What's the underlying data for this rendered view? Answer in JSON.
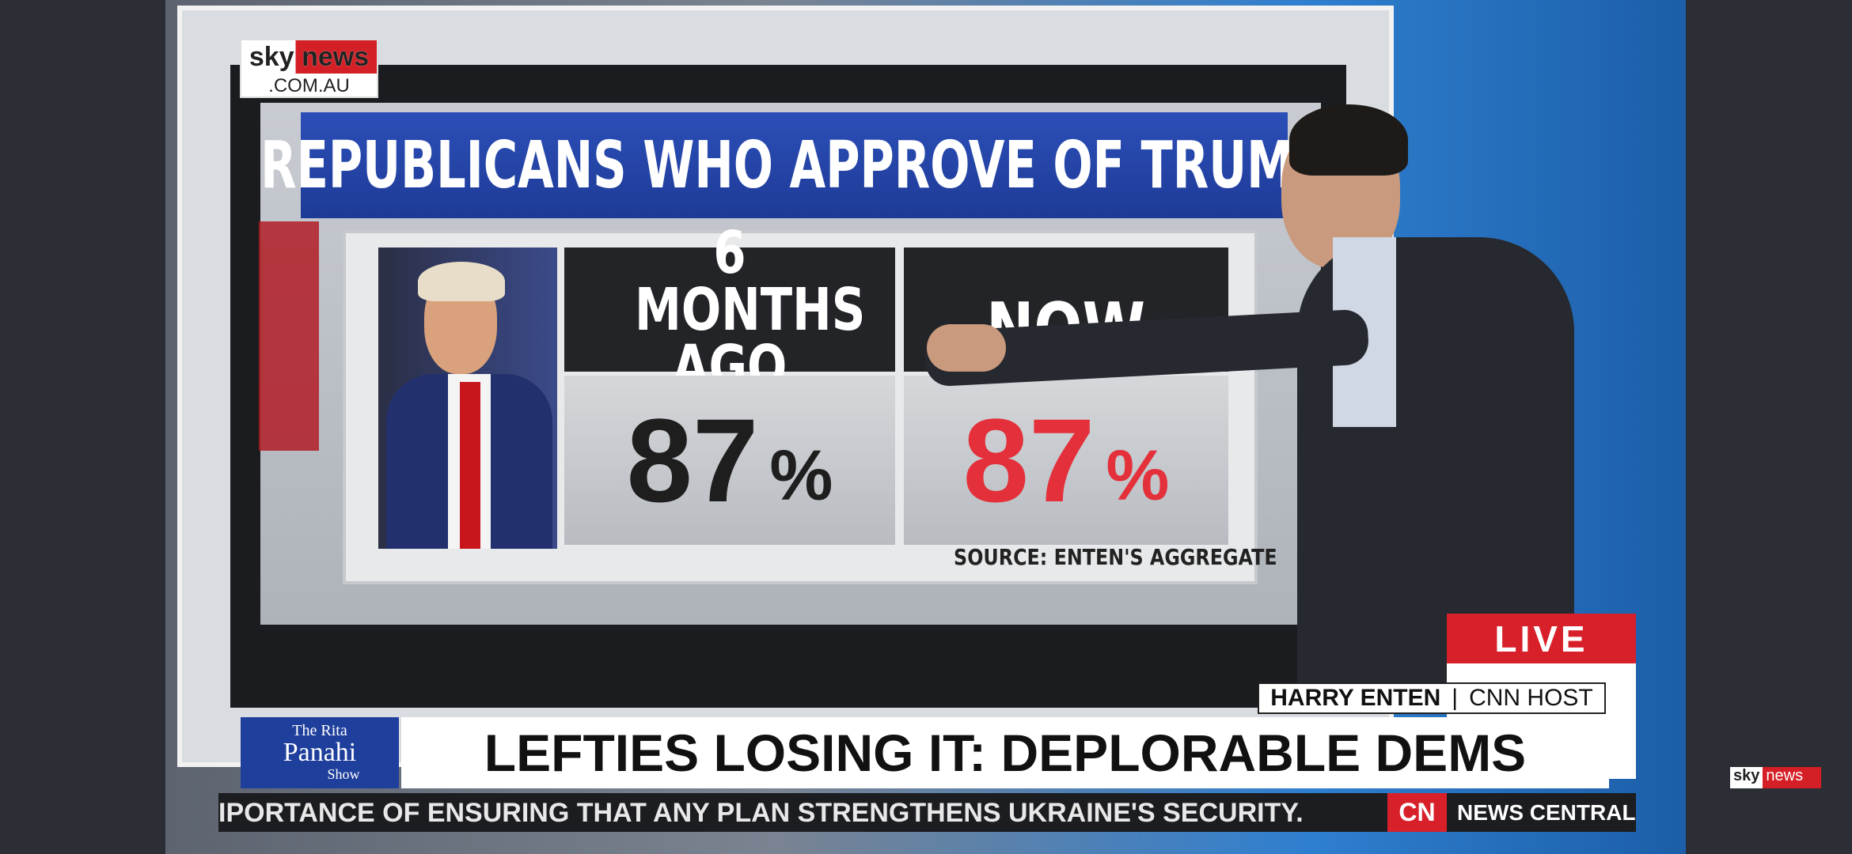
{
  "logo": {
    "brand": "sky news",
    "domain": ".COM.AU"
  },
  "graphic": {
    "title": "REPUBLICANS WHO APPROVE OF TRUMP",
    "columns": [
      {
        "label": "6 MONTHS AGO",
        "value": 87,
        "unit": "%"
      },
      {
        "label": "NOW",
        "value": 87,
        "unit": "%"
      }
    ],
    "source": "SOURCE: ENTEN'S AGGREGATE"
  },
  "live": "LIVE",
  "lower_third": {
    "name": "HARRY ENTEN",
    "role": "CNN HOST",
    "show": {
      "line1": "The Rita",
      "line2": "Panahi",
      "line3": "Show"
    },
    "headline": "LEFTIES LOSING IT: DEPLORABLE DEMS"
  },
  "ticker": {
    "text": "IPORTANCE OF ENSURING THAT ANY PLAN STRENGTHENS UKRAINE'S SECURITY.",
    "network": "CN",
    "channel": "NEWS CENTRAL"
  },
  "corner_logo": {
    "sky": "sky",
    "news": "news"
  }
}
